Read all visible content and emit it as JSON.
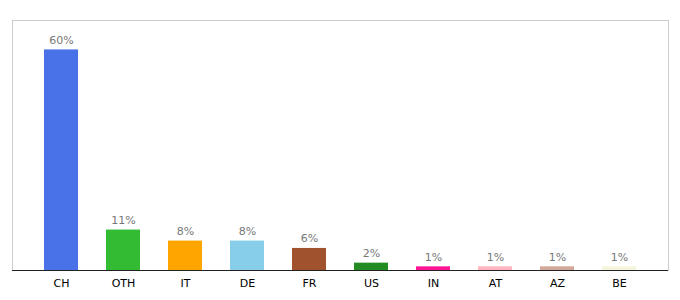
{
  "chart_data": {
    "type": "bar",
    "categories": [
      "CH",
      "OTH",
      "IT",
      "DE",
      "FR",
      "US",
      "IN",
      "AT",
      "AZ",
      "BE"
    ],
    "values": [
      60,
      11,
      8,
      8,
      6,
      2,
      1,
      1,
      1,
      1
    ],
    "value_labels": [
      "60%",
      "11%",
      "8%",
      "8%",
      "6%",
      "2%",
      "1%",
      "1%",
      "1%",
      "1%"
    ],
    "colors": [
      "#4A72E8",
      "#33BB33",
      "#FFA500",
      "#87CEEB",
      "#A0522D",
      "#228B22",
      "#FF1493",
      "#FFB6C1",
      "#D2A898",
      "#F5F5DC"
    ],
    "ylim": [
      0,
      68
    ],
    "grid": false,
    "data_labels": true,
    "tick_labels": "x"
  }
}
